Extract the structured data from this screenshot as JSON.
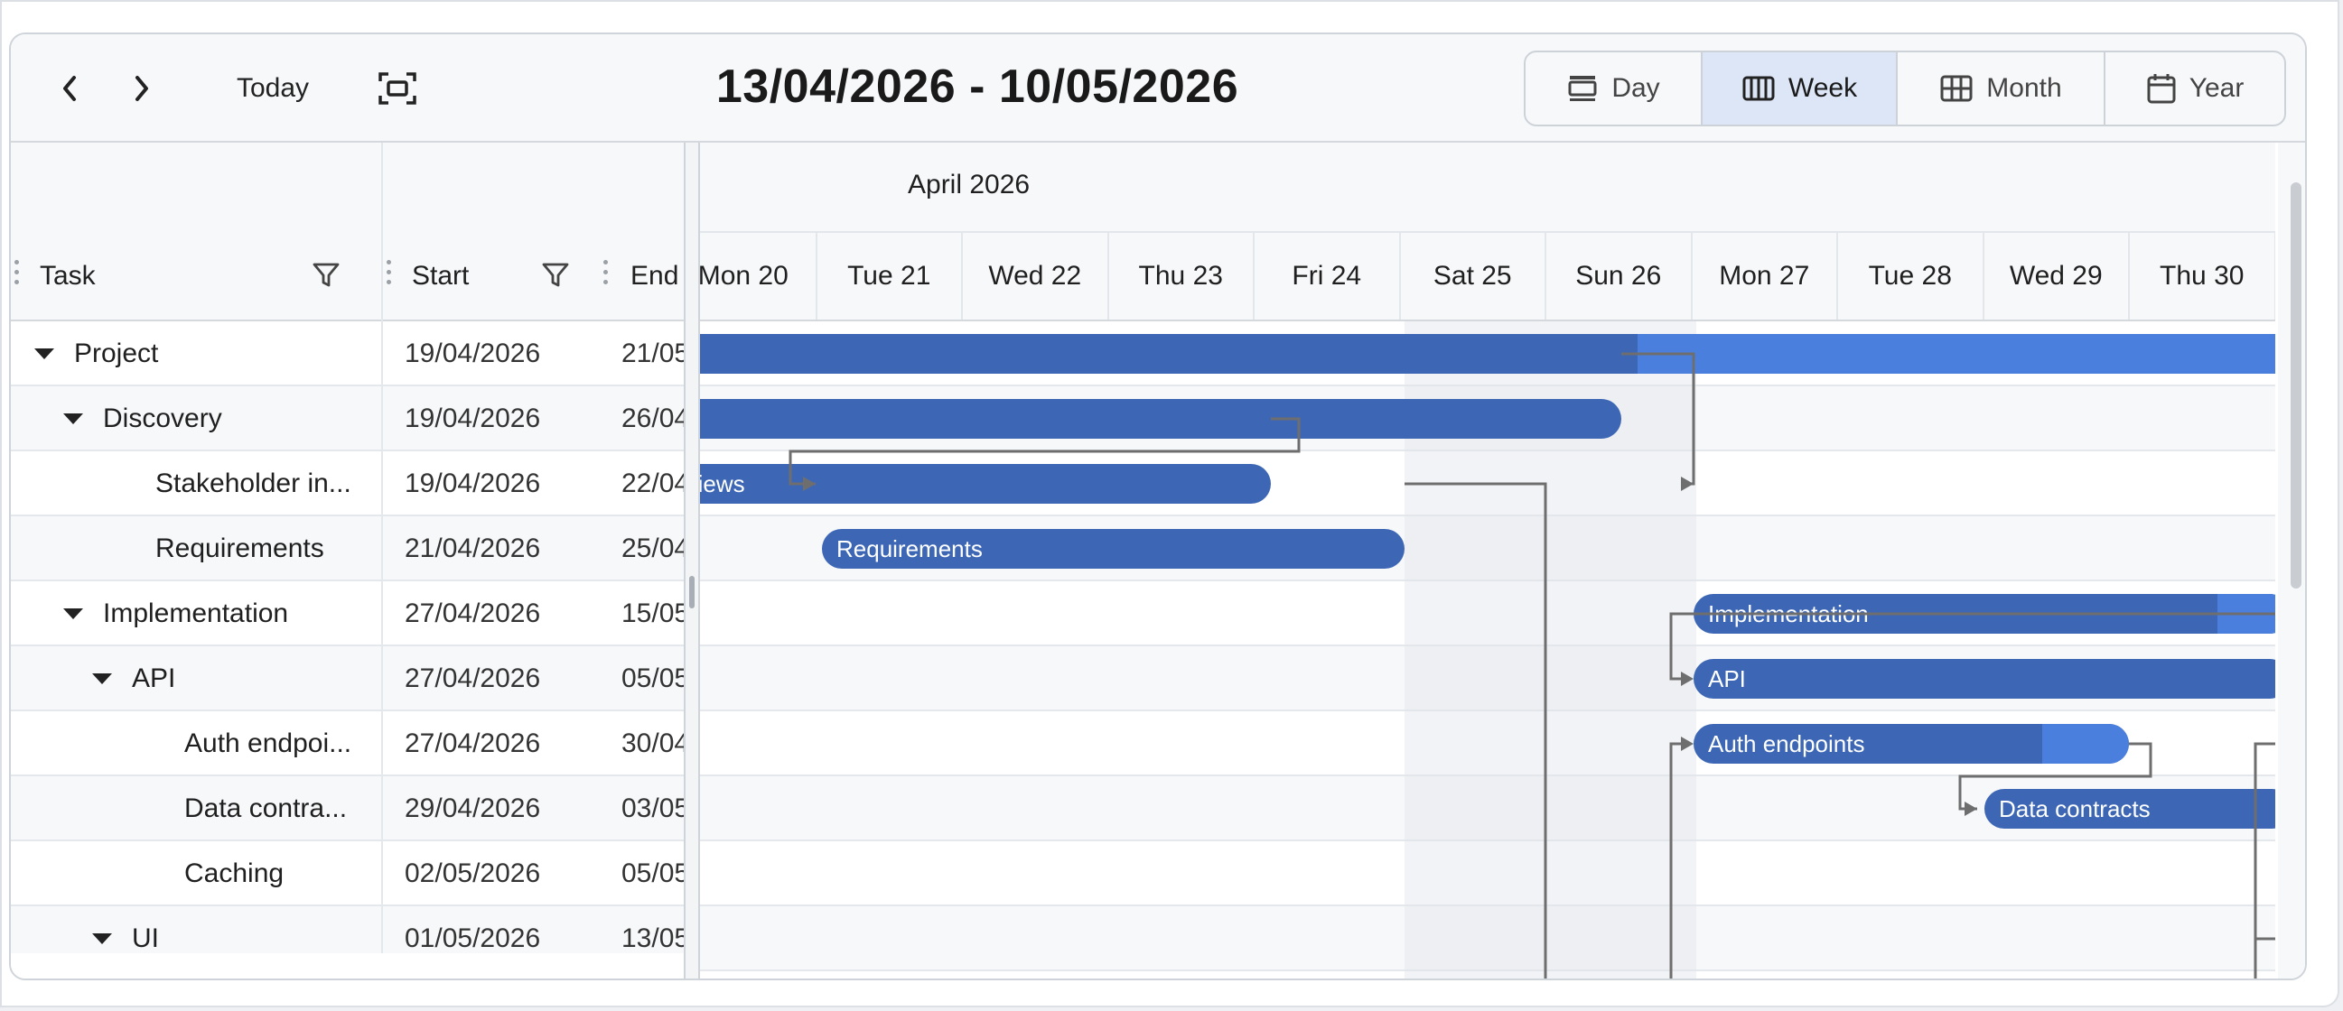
{
  "toolbar": {
    "prev_label": "‹",
    "next_label": "›",
    "today_label": "Today",
    "date_range": "13/04/2026 - 10/05/2026",
    "views": [
      {
        "label": "Day",
        "icon": "day-view-icon",
        "active": false
      },
      {
        "label": "Week",
        "icon": "week-view-icon",
        "active": true
      },
      {
        "label": "Month",
        "icon": "month-view-icon",
        "active": false
      },
      {
        "label": "Year",
        "icon": "year-view-icon",
        "active": false
      }
    ]
  },
  "grid": {
    "columns": {
      "task": "Task",
      "start": "Start",
      "end": "End"
    },
    "rows": [
      {
        "task": "Project",
        "start": "19/04/2026",
        "end": "21/05",
        "expandable": true
      },
      {
        "task": "Discovery",
        "start": "19/04/2026",
        "end": "26/04",
        "expandable": true
      },
      {
        "task": "Stakeholder in...",
        "start": "19/04/2026",
        "end": "22/04",
        "expandable": false
      },
      {
        "task": "Requirements",
        "start": "21/04/2026",
        "end": "25/04",
        "expandable": false
      },
      {
        "task": "Implementation",
        "start": "27/04/2026",
        "end": "15/05",
        "expandable": true
      },
      {
        "task": "API",
        "start": "27/04/2026",
        "end": "05/05",
        "expandable": true
      },
      {
        "task": "Auth endpoi...",
        "start": "27/04/2026",
        "end": "30/04",
        "expandable": false
      },
      {
        "task": "Data contra...",
        "start": "29/04/2026",
        "end": "03/05",
        "expandable": false
      },
      {
        "task": "Caching",
        "start": "02/05/2026",
        "end": "05/05",
        "expandable": false
      },
      {
        "task": "UI",
        "start": "01/05/2026",
        "end": "13/05",
        "expandable": true
      }
    ]
  },
  "timeline": {
    "month": "April 2026",
    "days": [
      "Mon 20",
      "Tue 21",
      "Wed 22",
      "Thu 23",
      "Fri 24",
      "Sat 25",
      "Sun 26",
      "Mon 27",
      "Tue 28",
      "Wed 29",
      "Thu 30"
    ],
    "bar_labels": {
      "stakeholder": "rviews",
      "requirements": "Requirements",
      "implementation": "Implementation",
      "api": "API",
      "auth": "Auth endpoints",
      "data_contracts": "Data contracts"
    }
  },
  "colors": {
    "bar": "#3d67b5",
    "progress": "#4a7fdd",
    "active_view": "#dde6f7",
    "link": "#6e6e6e"
  }
}
